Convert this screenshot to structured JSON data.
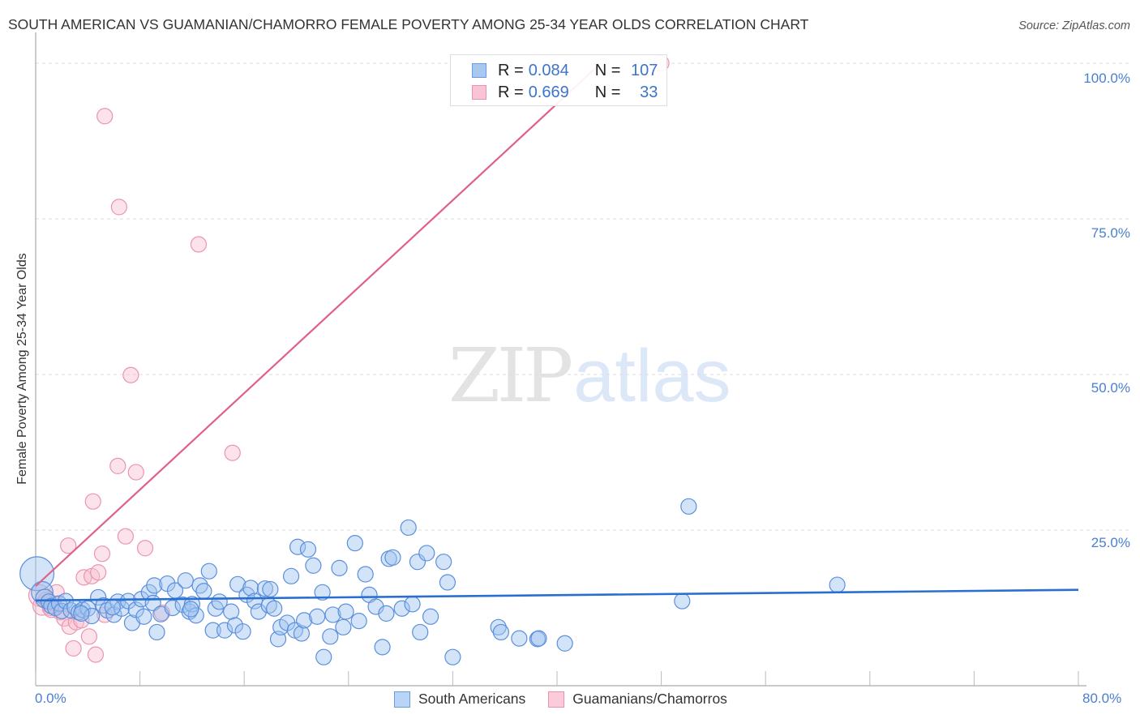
{
  "title": "SOUTH AMERICAN VS GUAMANIAN/CHAMORRO FEMALE POVERTY AMONG 25-34 YEAR OLDS CORRELATION CHART",
  "source": "Source: ZipAtlas.com",
  "watermark": {
    "zip": "ZIP",
    "atlas": "atlas"
  },
  "legend": {
    "rows": [
      {
        "r_label": "R =",
        "r_value": "0.084",
        "n_label": "N =",
        "n_value": "107",
        "color": "#a8c8f0",
        "border": "#6a9be0"
      },
      {
        "r_label": "R =",
        "r_value": "0.669",
        "n_label": "N =",
        "n_value": "33",
        "color": "#f9c4d4",
        "border": "#ec90ae"
      }
    ]
  },
  "bottom_legend": [
    {
      "label": "South Americans",
      "color": "#b8d4f6",
      "border": "#6a9be0"
    },
    {
      "label": "Guamanians/Chamorros",
      "color": "#fbcbd9",
      "border": "#ec90ae"
    }
  ],
  "colors": {
    "blue_fill": "rgba(160,196,240,0.45)",
    "blue_stroke": "#5b8fdc",
    "blue_line": "#2a6fd0",
    "pink_fill": "rgba(248,190,208,0.45)",
    "pink_stroke": "#ec94b0",
    "pink_line": "#e0608a",
    "tick_text": "#4a7fd0",
    "grid": "#dddddd"
  },
  "chart_data": {
    "type": "scatter",
    "title": "SOUTH AMERICAN VS GUAMANIAN/CHAMORRO FEMALE POVERTY AMONG 25-34 YEAR OLDS CORRELATION CHART",
    "xlabel": "",
    "ylabel": "Female Poverty Among 25-34 Year Olds",
    "xlim": [
      0,
      80
    ],
    "ylim": [
      0,
      100
    ],
    "x_tick_labels": [
      "0.0%",
      "80.0%"
    ],
    "y_tick_labels": [
      "25.0%",
      "50.0%",
      "75.0%",
      "100.0%"
    ],
    "y_ticks": [
      25,
      50,
      75,
      100
    ],
    "grid": "horizontal dashed",
    "legend_position": "top-center and bottom",
    "series": [
      {
        "name": "South Americans",
        "R": 0.084,
        "N": 107,
        "trend": {
          "x": [
            0,
            80
          ],
          "y": [
            13.7,
            15.4
          ]
        },
        "points": [
          [
            0.1,
            18,
            2.2
          ],
          [
            0.5,
            15,
            1.4
          ],
          [
            0.7,
            14,
            1.2
          ],
          [
            1.0,
            13.5,
            1
          ],
          [
            1.2,
            12.8,
            1
          ],
          [
            1.5,
            12.5,
            1
          ],
          [
            1.8,
            13.2,
            1
          ],
          [
            2.0,
            12.0,
            1
          ],
          [
            2.3,
            13.6,
            1
          ],
          [
            2.7,
            12.1,
            1
          ],
          [
            3.0,
            12.6,
            1
          ],
          [
            3.3,
            11.8,
            1
          ],
          [
            3.6,
            12.2,
            1
          ],
          [
            4.0,
            12.4,
            1
          ],
          [
            4.3,
            11.2,
            1
          ],
          [
            4.8,
            14.2,
            1
          ],
          [
            5.2,
            12.9,
            1
          ],
          [
            5.5,
            12.1,
            1
          ],
          [
            6.0,
            11.4,
            1
          ],
          [
            6.3,
            13.5,
            1
          ],
          [
            6.6,
            12.4,
            1
          ],
          [
            7.1,
            13.6,
            1
          ],
          [
            7.4,
            10.1,
            1
          ],
          [
            7.7,
            12.2,
            1
          ],
          [
            8.1,
            13.9,
            1
          ],
          [
            8.3,
            11.1,
            1
          ],
          [
            8.7,
            15.0,
            1
          ],
          [
            9.0,
            13.3,
            1
          ],
          [
            9.1,
            16.1,
            1
          ],
          [
            9.3,
            8.6,
            1
          ],
          [
            9.6,
            11.5,
            1
          ],
          [
            10.1,
            16.4,
            1
          ],
          [
            10.5,
            12.5,
            1
          ],
          [
            10.7,
            15.3,
            1
          ],
          [
            11.3,
            13.0,
            1
          ],
          [
            11.5,
            16.9,
            1
          ],
          [
            11.8,
            11.9,
            1
          ],
          [
            12.0,
            13.1,
            1
          ],
          [
            12.3,
            11.3,
            1
          ],
          [
            12.6,
            16.1,
            1
          ],
          [
            12.9,
            15.2,
            1
          ],
          [
            13.3,
            18.4,
            1
          ],
          [
            13.6,
            8.9,
            1
          ],
          [
            13.8,
            12.4,
            1
          ],
          [
            14.1,
            13.5,
            1
          ],
          [
            14.5,
            8.9,
            1
          ],
          [
            15.0,
            11.9,
            1
          ],
          [
            15.3,
            9.7,
            1
          ],
          [
            15.5,
            16.3,
            1
          ],
          [
            15.9,
            8.7,
            1
          ],
          [
            16.2,
            14.6,
            1
          ],
          [
            16.5,
            15.7,
            1
          ],
          [
            16.8,
            13.6,
            1
          ],
          [
            17.1,
            11.9,
            1
          ],
          [
            17.6,
            15.6,
            1
          ],
          [
            17.9,
            12.9,
            1
          ],
          [
            18.0,
            15.5,
            1
          ],
          [
            18.3,
            12.4,
            1
          ],
          [
            18.6,
            7.5,
            1
          ],
          [
            18.8,
            9.4,
            1
          ],
          [
            19.3,
            10.1,
            1
          ],
          [
            19.6,
            17.6,
            1
          ],
          [
            19.9,
            8.9,
            1
          ],
          [
            20.1,
            22.3,
            1
          ],
          [
            20.4,
            8.4,
            1
          ],
          [
            20.6,
            10.5,
            1
          ],
          [
            20.9,
            21.9,
            1
          ],
          [
            21.3,
            19.3,
            1
          ],
          [
            21.6,
            11.1,
            1
          ],
          [
            22.0,
            15.0,
            1
          ],
          [
            22.6,
            7.9,
            1
          ],
          [
            22.8,
            11.4,
            1
          ],
          [
            23.3,
            18.9,
            1
          ],
          [
            23.6,
            9.4,
            1
          ],
          [
            23.8,
            11.9,
            1
          ],
          [
            24.5,
            22.9,
            1
          ],
          [
            24.8,
            10.4,
            1
          ],
          [
            25.3,
            17.9,
            1
          ],
          [
            25.6,
            14.6,
            1
          ],
          [
            26.1,
            12.7,
            1
          ],
          [
            26.6,
            6.2,
            1
          ],
          [
            26.9,
            11.6,
            1
          ],
          [
            27.1,
            20.4,
            1
          ],
          [
            27.4,
            20.6,
            1
          ],
          [
            28.1,
            12.4,
            1
          ],
          [
            28.6,
            25.4,
            1
          ],
          [
            28.9,
            13.1,
            1
          ],
          [
            29.3,
            19.9,
            1
          ],
          [
            29.5,
            8.6,
            1
          ],
          [
            30.0,
            21.3,
            1
          ],
          [
            30.3,
            11.1,
            1
          ],
          [
            31.3,
            19.9,
            1
          ],
          [
            31.6,
            16.6,
            1
          ],
          [
            32.0,
            4.6,
            1
          ],
          [
            35.5,
            9.4,
            1
          ],
          [
            35.7,
            8.6,
            1
          ],
          [
            37.1,
            7.6,
            1
          ],
          [
            38.5,
            7.5,
            1
          ],
          [
            38.6,
            7.6,
            1
          ],
          [
            40.6,
            6.8,
            1
          ],
          [
            49.6,
            13.6,
            1
          ],
          [
            50.1,
            28.8,
            1
          ],
          [
            61.5,
            16.2,
            1
          ],
          [
            22.1,
            4.6,
            1
          ],
          [
            11.9,
            12.3,
            1
          ],
          [
            5.9,
            12.6,
            1
          ],
          [
            3.5,
            11.6,
            1
          ]
        ]
      },
      {
        "name": "Guamanians/Chamorros",
        "R": 0.669,
        "N": 33,
        "trend": {
          "x": [
            0,
            43
          ],
          "y": [
            16.0,
            99.3
          ]
        },
        "points": [
          [
            0.3,
            14.5,
            1.4
          ],
          [
            0.5,
            12.8,
            1.2
          ],
          [
            0.8,
            13.8,
            1
          ],
          [
            1.1,
            12.5,
            1
          ],
          [
            1.4,
            13.2,
            1
          ],
          [
            1.6,
            15.0,
            1
          ],
          [
            1.9,
            11.8,
            1
          ],
          [
            2.2,
            10.8,
            1
          ],
          [
            2.5,
            22.5,
            1
          ],
          [
            2.6,
            9.5,
            1
          ],
          [
            2.9,
            6.0,
            1
          ],
          [
            3.1,
            10.2,
            1
          ],
          [
            3.5,
            10.5,
            1
          ],
          [
            3.7,
            17.4,
            1
          ],
          [
            4.1,
            7.9,
            1
          ],
          [
            4.3,
            17.6,
            1
          ],
          [
            4.4,
            29.6,
            1
          ],
          [
            4.6,
            5.0,
            1
          ],
          [
            4.8,
            18.2,
            1
          ],
          [
            5.1,
            21.2,
            1
          ],
          [
            5.3,
            91.5,
            1
          ],
          [
            5.3,
            11.4,
            1
          ],
          [
            6.3,
            35.3,
            1
          ],
          [
            6.4,
            76.9,
            1
          ],
          [
            6.9,
            24.0,
            1
          ],
          [
            7.3,
            49.9,
            1
          ],
          [
            7.7,
            34.3,
            1
          ],
          [
            8.4,
            22.1,
            1
          ],
          [
            9.7,
            11.7,
            1
          ],
          [
            12.5,
            70.9,
            1
          ],
          [
            15.1,
            37.4,
            1
          ],
          [
            48.0,
            100.0,
            1
          ],
          [
            1.2,
            12.2,
            1
          ]
        ]
      }
    ]
  }
}
